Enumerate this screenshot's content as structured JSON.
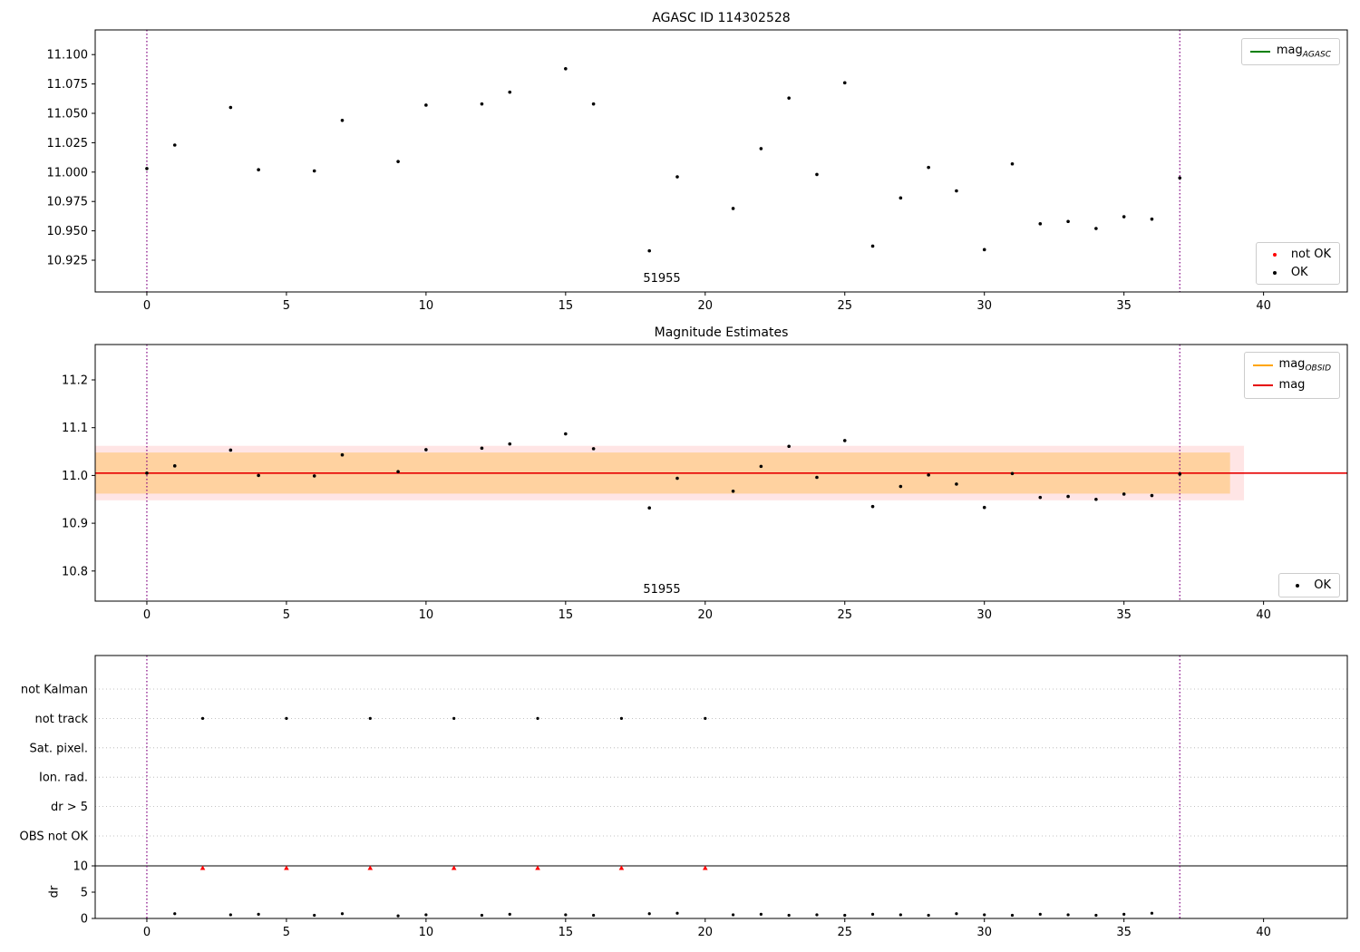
{
  "chart_data": [
    {
      "type": "scatter",
      "title": "AGASC ID 114302528",
      "xlabel": "",
      "ylabel": "",
      "xlim": [
        -1.85,
        43.0
      ],
      "ylim": [
        10.898,
        11.121
      ],
      "xticks": [
        0,
        5,
        10,
        15,
        20,
        25,
        30,
        35,
        40
      ],
      "yticks": [
        10.925,
        10.95,
        10.975,
        11.0,
        11.025,
        11.05,
        11.075,
        11.1
      ],
      "ytick_labels": [
        "10.925",
        "10.950",
        "10.975",
        "11.000",
        "11.025",
        "11.050",
        "11.075",
        "11.100"
      ],
      "grid": false,
      "vlines": {
        "x": [
          0,
          37
        ],
        "color": "#800080",
        "style": "dotted"
      },
      "annotation": {
        "text": "51955",
        "x": 18.45,
        "y": 10.912
      },
      "series": [
        {
          "name": "OK",
          "marker": "dot",
          "color": "#000000",
          "x": [
            0,
            1,
            3,
            4,
            6,
            7,
            9,
            10,
            12,
            13,
            15,
            16,
            18,
            19,
            21,
            22,
            23,
            24,
            25,
            26,
            27,
            28,
            29,
            30,
            31,
            32,
            33,
            34,
            35,
            36,
            37
          ],
          "y": [
            11.003,
            11.023,
            11.055,
            11.002,
            11.001,
            11.044,
            11.009,
            11.057,
            11.058,
            11.068,
            11.088,
            11.058,
            10.933,
            10.996,
            10.969,
            11.02,
            11.063,
            10.998,
            11.076,
            10.937,
            10.978,
            11.004,
            10.984,
            10.934,
            11.007,
            10.956,
            10.958,
            10.952,
            10.962,
            10.96,
            10.995
          ]
        }
      ],
      "legend_top": [
        {
          "main": "mag",
          "sub": "AGASC",
          "swatch": "line",
          "color": "#008000"
        }
      ],
      "legend_bottom": [
        {
          "main": "not OK",
          "sub": "",
          "swatch": "dot",
          "color": "#ff0000"
        },
        {
          "main": "OK",
          "sub": "",
          "swatch": "dot",
          "color": "#000000"
        }
      ]
    },
    {
      "type": "scatter",
      "title": "Magnitude Estimates",
      "xlabel": "",
      "ylabel": "",
      "xlim": [
        -1.85,
        43.0
      ],
      "ylim": [
        10.737,
        11.274
      ],
      "xticks": [
        0,
        5,
        10,
        15,
        20,
        25,
        30,
        35,
        40
      ],
      "yticks": [
        10.8,
        10.9,
        11.0,
        11.1,
        11.2
      ],
      "ytick_labels": [
        "10.8",
        "10.9",
        "11.0",
        "11.1",
        "11.2"
      ],
      "grid": false,
      "vlines": {
        "x": [
          0,
          37
        ],
        "color": "#800080",
        "style": "dotted"
      },
      "annotation": {
        "text": "51955",
        "x": 18.45,
        "y": 10.77
      },
      "bands": [
        {
          "x0": -1.85,
          "x1": 39.3,
          "y0": 10.948,
          "y1": 11.062,
          "color": "rgba(255,0,0,0.10)"
        },
        {
          "x0": -1.85,
          "x1": 38.8,
          "y0": 10.962,
          "y1": 11.048,
          "color": "rgba(255,165,0,0.30)"
        }
      ],
      "hlines": [
        {
          "y": 11.005,
          "x0": -1.85,
          "x1": 43.0,
          "color": "#e60000",
          "width": 1.6
        }
      ],
      "series": [
        {
          "name": "OK",
          "marker": "dot",
          "color": "#000000",
          "x": [
            0,
            1,
            3,
            4,
            6,
            7,
            9,
            10,
            12,
            13,
            15,
            16,
            18,
            19,
            21,
            22,
            23,
            24,
            25,
            26,
            27,
            28,
            29,
            30,
            31,
            32,
            33,
            34,
            35,
            36,
            37
          ],
          "y": [
            11.005,
            11.02,
            11.053,
            11.0,
            10.999,
            11.043,
            11.008,
            11.054,
            11.057,
            11.066,
            11.087,
            11.056,
            10.932,
            10.994,
            10.967,
            11.019,
            11.061,
            10.996,
            11.073,
            10.935,
            10.977,
            11.001,
            10.982,
            10.933,
            11.004,
            10.954,
            10.956,
            10.95,
            10.961,
            10.958,
            11.003
          ]
        }
      ],
      "legend_top": [
        {
          "main": "mag",
          "sub": "OBSID",
          "swatch": "line",
          "color": "#ffa500"
        },
        {
          "main": "mag",
          "sub": "",
          "swatch": "line",
          "color": "#e60000"
        }
      ],
      "legend_bottom": [
        {
          "main": "OK",
          "sub": "",
          "swatch": "dot",
          "color": "#000000"
        }
      ]
    },
    {
      "type": "scatter",
      "title": "",
      "categories": [
        "not Kalman",
        "not track",
        "Sat. pixel.",
        "Ion. rad.",
        "dr > 5",
        "OBS not OK"
      ],
      "flags": [
        {
          "category": "not track",
          "x": [
            2,
            5,
            8,
            11,
            14,
            17,
            20
          ],
          "color": "#000000"
        }
      ],
      "xticks": [
        0,
        5,
        10,
        15,
        20,
        25,
        30,
        35,
        40
      ],
      "vlines": {
        "x": [
          0,
          37
        ],
        "color": "#800080",
        "style": "dotted"
      },
      "dr": {
        "ylabel": "dr",
        "yticks": [
          0,
          5,
          10
        ],
        "ylim": [
          0,
          10
        ],
        "threshold_line_y": 10,
        "points": {
          "x": [
            1,
            3,
            4,
            6,
            7,
            9,
            10,
            12,
            13,
            15,
            16,
            18,
            19,
            21,
            22,
            23,
            24,
            25,
            26,
            27,
            28,
            29,
            30,
            31,
            32,
            33,
            34,
            35,
            36
          ],
          "y": [
            0.9,
            0.7,
            0.8,
            0.6,
            0.9,
            0.5,
            0.7,
            0.6,
            0.8,
            0.7,
            0.6,
            0.9,
            1.0,
            0.7,
            0.8,
            0.6,
            0.7,
            0.6,
            0.8,
            0.7,
            0.6,
            0.9,
            0.7,
            0.6,
            0.8,
            0.7,
            0.6,
            0.8,
            1.0
          ]
        },
        "clipped": {
          "x": [
            2,
            5,
            8,
            11,
            14,
            17,
            20
          ],
          "value": 9.6,
          "color": "#ff0000",
          "marker": "triangle-up"
        }
      }
    }
  ]
}
